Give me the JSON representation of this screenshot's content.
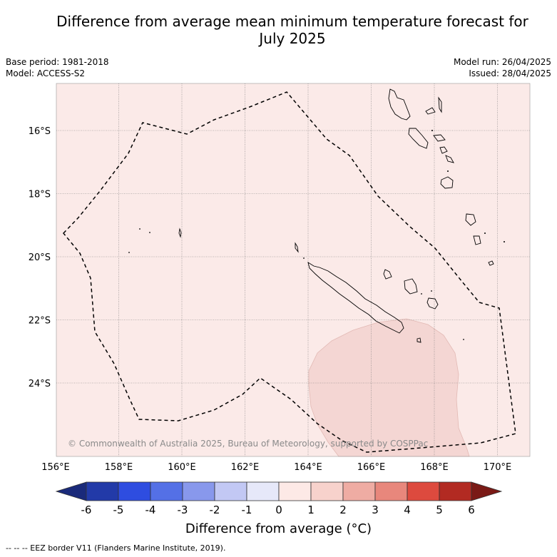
{
  "title_line1": "Difference from average mean minimum temperature forecast for",
  "title_line2": "July 2025",
  "base_period": "Base period: 1981-2018",
  "model": "Model: ACCESS-S2",
  "model_run": "Model run: 26/04/2025",
  "issued": "Issued: 28/04/2025",
  "lat_labels": [
    "16°S",
    "18°S",
    "20°S",
    "22°S",
    "24°S"
  ],
  "lon_labels": [
    "156°E",
    "158°E",
    "160°E",
    "162°E",
    "164°E",
    "166°E",
    "168°E",
    "170°E"
  ],
  "copyright": "© Commonwealth of Australia 2025, Bureau of Meteorology, supported by COSPPac",
  "colorbar": {
    "ticks": [
      "-6",
      "-5",
      "-4",
      "-3",
      "-2",
      "-1",
      "0",
      "1",
      "2",
      "3",
      "4",
      "5",
      "6"
    ],
    "colors": [
      "#1a2a7a",
      "#223aa8",
      "#2e4de0",
      "#5470e6",
      "#8898ec",
      "#c2c8f4",
      "#e6e8f9",
      "#fde9e6",
      "#f7d2cc",
      "#efaca3",
      "#e8877c",
      "#dd4a3e",
      "#b22a22",
      "#7a1a16"
    ],
    "label": "Difference from average (°C)"
  },
  "legend_note": "--  --  -- EEZ border V11 (Flanders Marine Institute, 2019).",
  "map": {
    "background_color": "#fbeae8",
    "anomaly_region_color": "#f4d6d3",
    "lon_range": [
      156,
      171
    ],
    "lat_range": [
      -26.3,
      -14.5
    ]
  }
}
